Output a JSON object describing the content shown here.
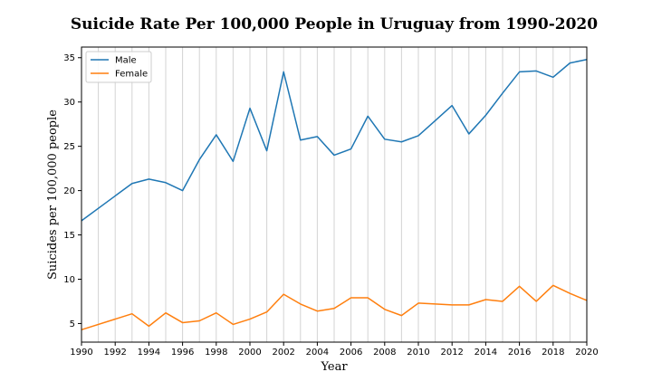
{
  "chart_data": {
    "type": "line",
    "title": "Suicide Rate Per 100,000 People in Uruguay from 1990-2020",
    "xlabel": "Year",
    "ylabel": "Suicides per 100,000 people",
    "xlim": [
      1990,
      2020
    ],
    "ylim": [
      2.9,
      36.2
    ],
    "x_ticks": [
      1990,
      1992,
      1994,
      1996,
      1998,
      2000,
      2002,
      2004,
      2006,
      2008,
      2010,
      2012,
      2014,
      2016,
      2018,
      2020
    ],
    "y_ticks": [
      5,
      10,
      15,
      20,
      25,
      30,
      35
    ],
    "grid": "vertical lines at every year",
    "legend_position": "top-left",
    "x": [
      1990,
      1993,
      1994,
      1995,
      1996,
      1997,
      1998,
      1999,
      2000,
      2001,
      2002,
      2003,
      2004,
      2005,
      2006,
      2007,
      2008,
      2009,
      2010,
      2011,
      2012,
      2013,
      2014,
      2015,
      2016,
      2017,
      2018,
      2019,
      2020
    ],
    "series": [
      {
        "name": "Male",
        "color": "#1f77b4",
        "values": [
          16.6,
          20.8,
          21.3,
          20.9,
          20.0,
          23.5,
          26.3,
          23.3,
          29.3,
          24.5,
          33.4,
          25.7,
          26.1,
          24.0,
          24.7,
          28.4,
          25.8,
          25.5,
          26.2,
          27.9,
          29.6,
          26.4,
          28.5,
          31.0,
          33.4,
          33.5,
          32.8,
          34.4,
          34.8
        ]
      },
      {
        "name": "Female",
        "color": "#ff7f0e",
        "values": [
          4.3,
          6.1,
          4.7,
          6.2,
          5.1,
          5.3,
          6.2,
          4.9,
          5.5,
          6.3,
          8.3,
          7.2,
          6.4,
          6.7,
          7.9,
          7.9,
          6.6,
          5.9,
          7.3,
          7.2,
          7.1,
          7.1,
          7.7,
          7.5,
          9.2,
          7.5,
          9.3,
          8.4,
          7.6
        ]
      }
    ]
  }
}
